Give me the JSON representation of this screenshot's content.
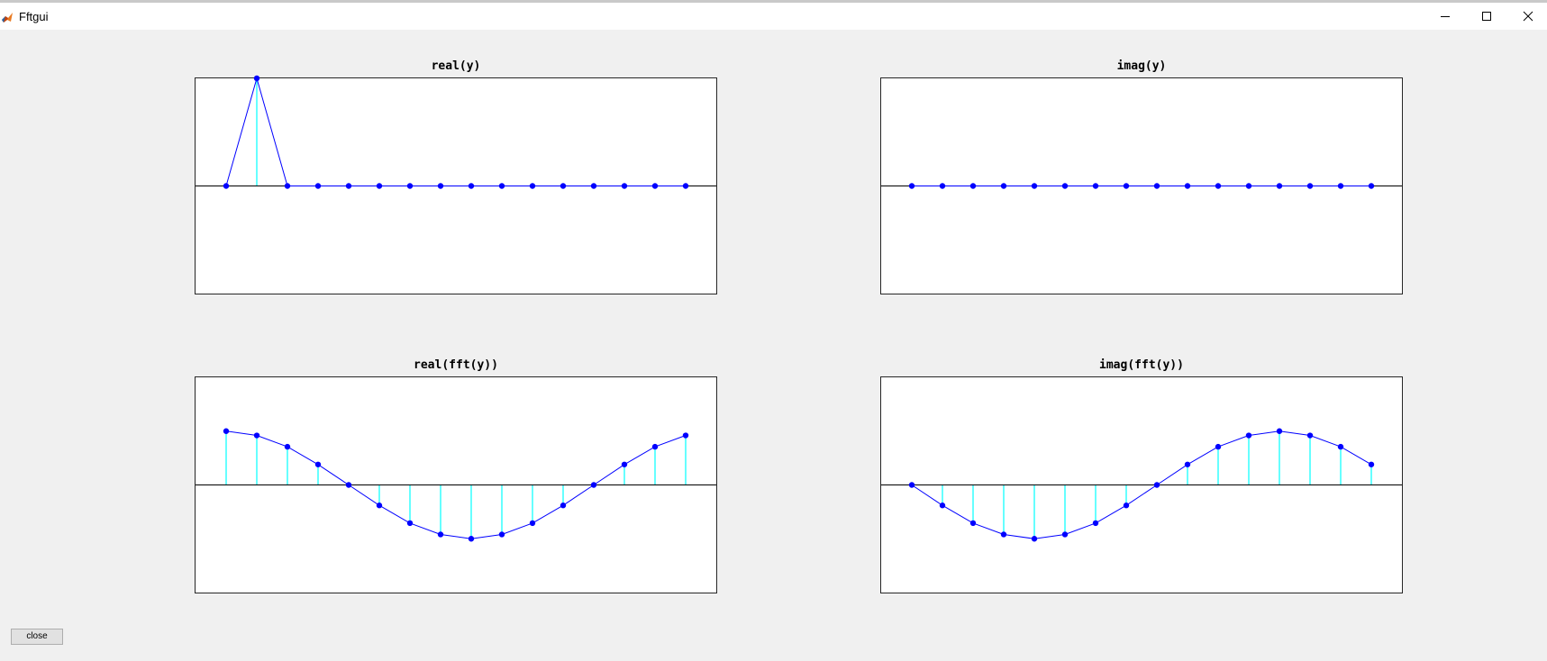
{
  "window": {
    "title": "Fftgui",
    "icon": "matlab-icon",
    "controls": [
      "minimize-icon",
      "maximize-icon",
      "close-icon"
    ]
  },
  "colors": {
    "background": "#f0f0f0",
    "axes_face": "#ffffff",
    "axes_edge": "#262626",
    "stem": "#00ffff",
    "line": "#0000ff",
    "marker": "#0000ff",
    "baseline": "#000000"
  },
  "buttons": {
    "close_label": "close"
  },
  "chart_data": [
    {
      "type": "line",
      "title": "real(y)",
      "xlabel": "",
      "ylabel": "",
      "x": [
        0,
        1,
        2,
        3,
        4,
        5,
        6,
        7,
        8,
        9,
        10,
        11,
        12,
        13,
        14,
        15
      ],
      "values": [
        0,
        1,
        0,
        0,
        0,
        0,
        0,
        0,
        0,
        0,
        0,
        0,
        0,
        0,
        0,
        0
      ],
      "xlim": [
        -1,
        16
      ],
      "ylim": [
        -1,
        1
      ],
      "grid": false,
      "markers": "stem"
    },
    {
      "type": "line",
      "title": "imag(y)",
      "xlabel": "",
      "ylabel": "",
      "x": [
        0,
        1,
        2,
        3,
        4,
        5,
        6,
        7,
        8,
        9,
        10,
        11,
        12,
        13,
        14,
        15
      ],
      "values": [
        0,
        0,
        0,
        0,
        0,
        0,
        0,
        0,
        0,
        0,
        0,
        0,
        0,
        0,
        0,
        0
      ],
      "xlim": [
        -1,
        16
      ],
      "ylim": [
        -1,
        1
      ],
      "grid": false,
      "markers": "stem"
    },
    {
      "type": "line",
      "title": "real(fft(y))",
      "xlabel": "",
      "ylabel": "",
      "x": [
        0,
        1,
        2,
        3,
        4,
        5,
        6,
        7,
        8,
        9,
        10,
        11,
        12,
        13,
        14,
        15
      ],
      "values": [
        1,
        0.92,
        0.71,
        0.38,
        0,
        -0.38,
        -0.71,
        -0.92,
        -1,
        -0.92,
        -0.71,
        -0.38,
        0,
        0.38,
        0.71,
        0.92
      ],
      "xlim": [
        -1,
        16
      ],
      "ylim": [
        -2,
        2
      ],
      "grid": false,
      "markers": "stem"
    },
    {
      "type": "line",
      "title": "imag(fft(y))",
      "xlabel": "",
      "ylabel": "",
      "x": [
        0,
        1,
        2,
        3,
        4,
        5,
        6,
        7,
        8,
        9,
        10,
        11,
        12,
        13,
        14,
        15
      ],
      "values": [
        0,
        -0.38,
        -0.71,
        -0.92,
        -1,
        -0.92,
        -0.71,
        -0.38,
        0,
        0.38,
        0.71,
        0.92,
        1,
        0.92,
        0.71,
        0.38
      ],
      "xlim": [
        -1,
        16
      ],
      "ylim": [
        -2,
        2
      ],
      "grid": false,
      "markers": "stem"
    }
  ]
}
